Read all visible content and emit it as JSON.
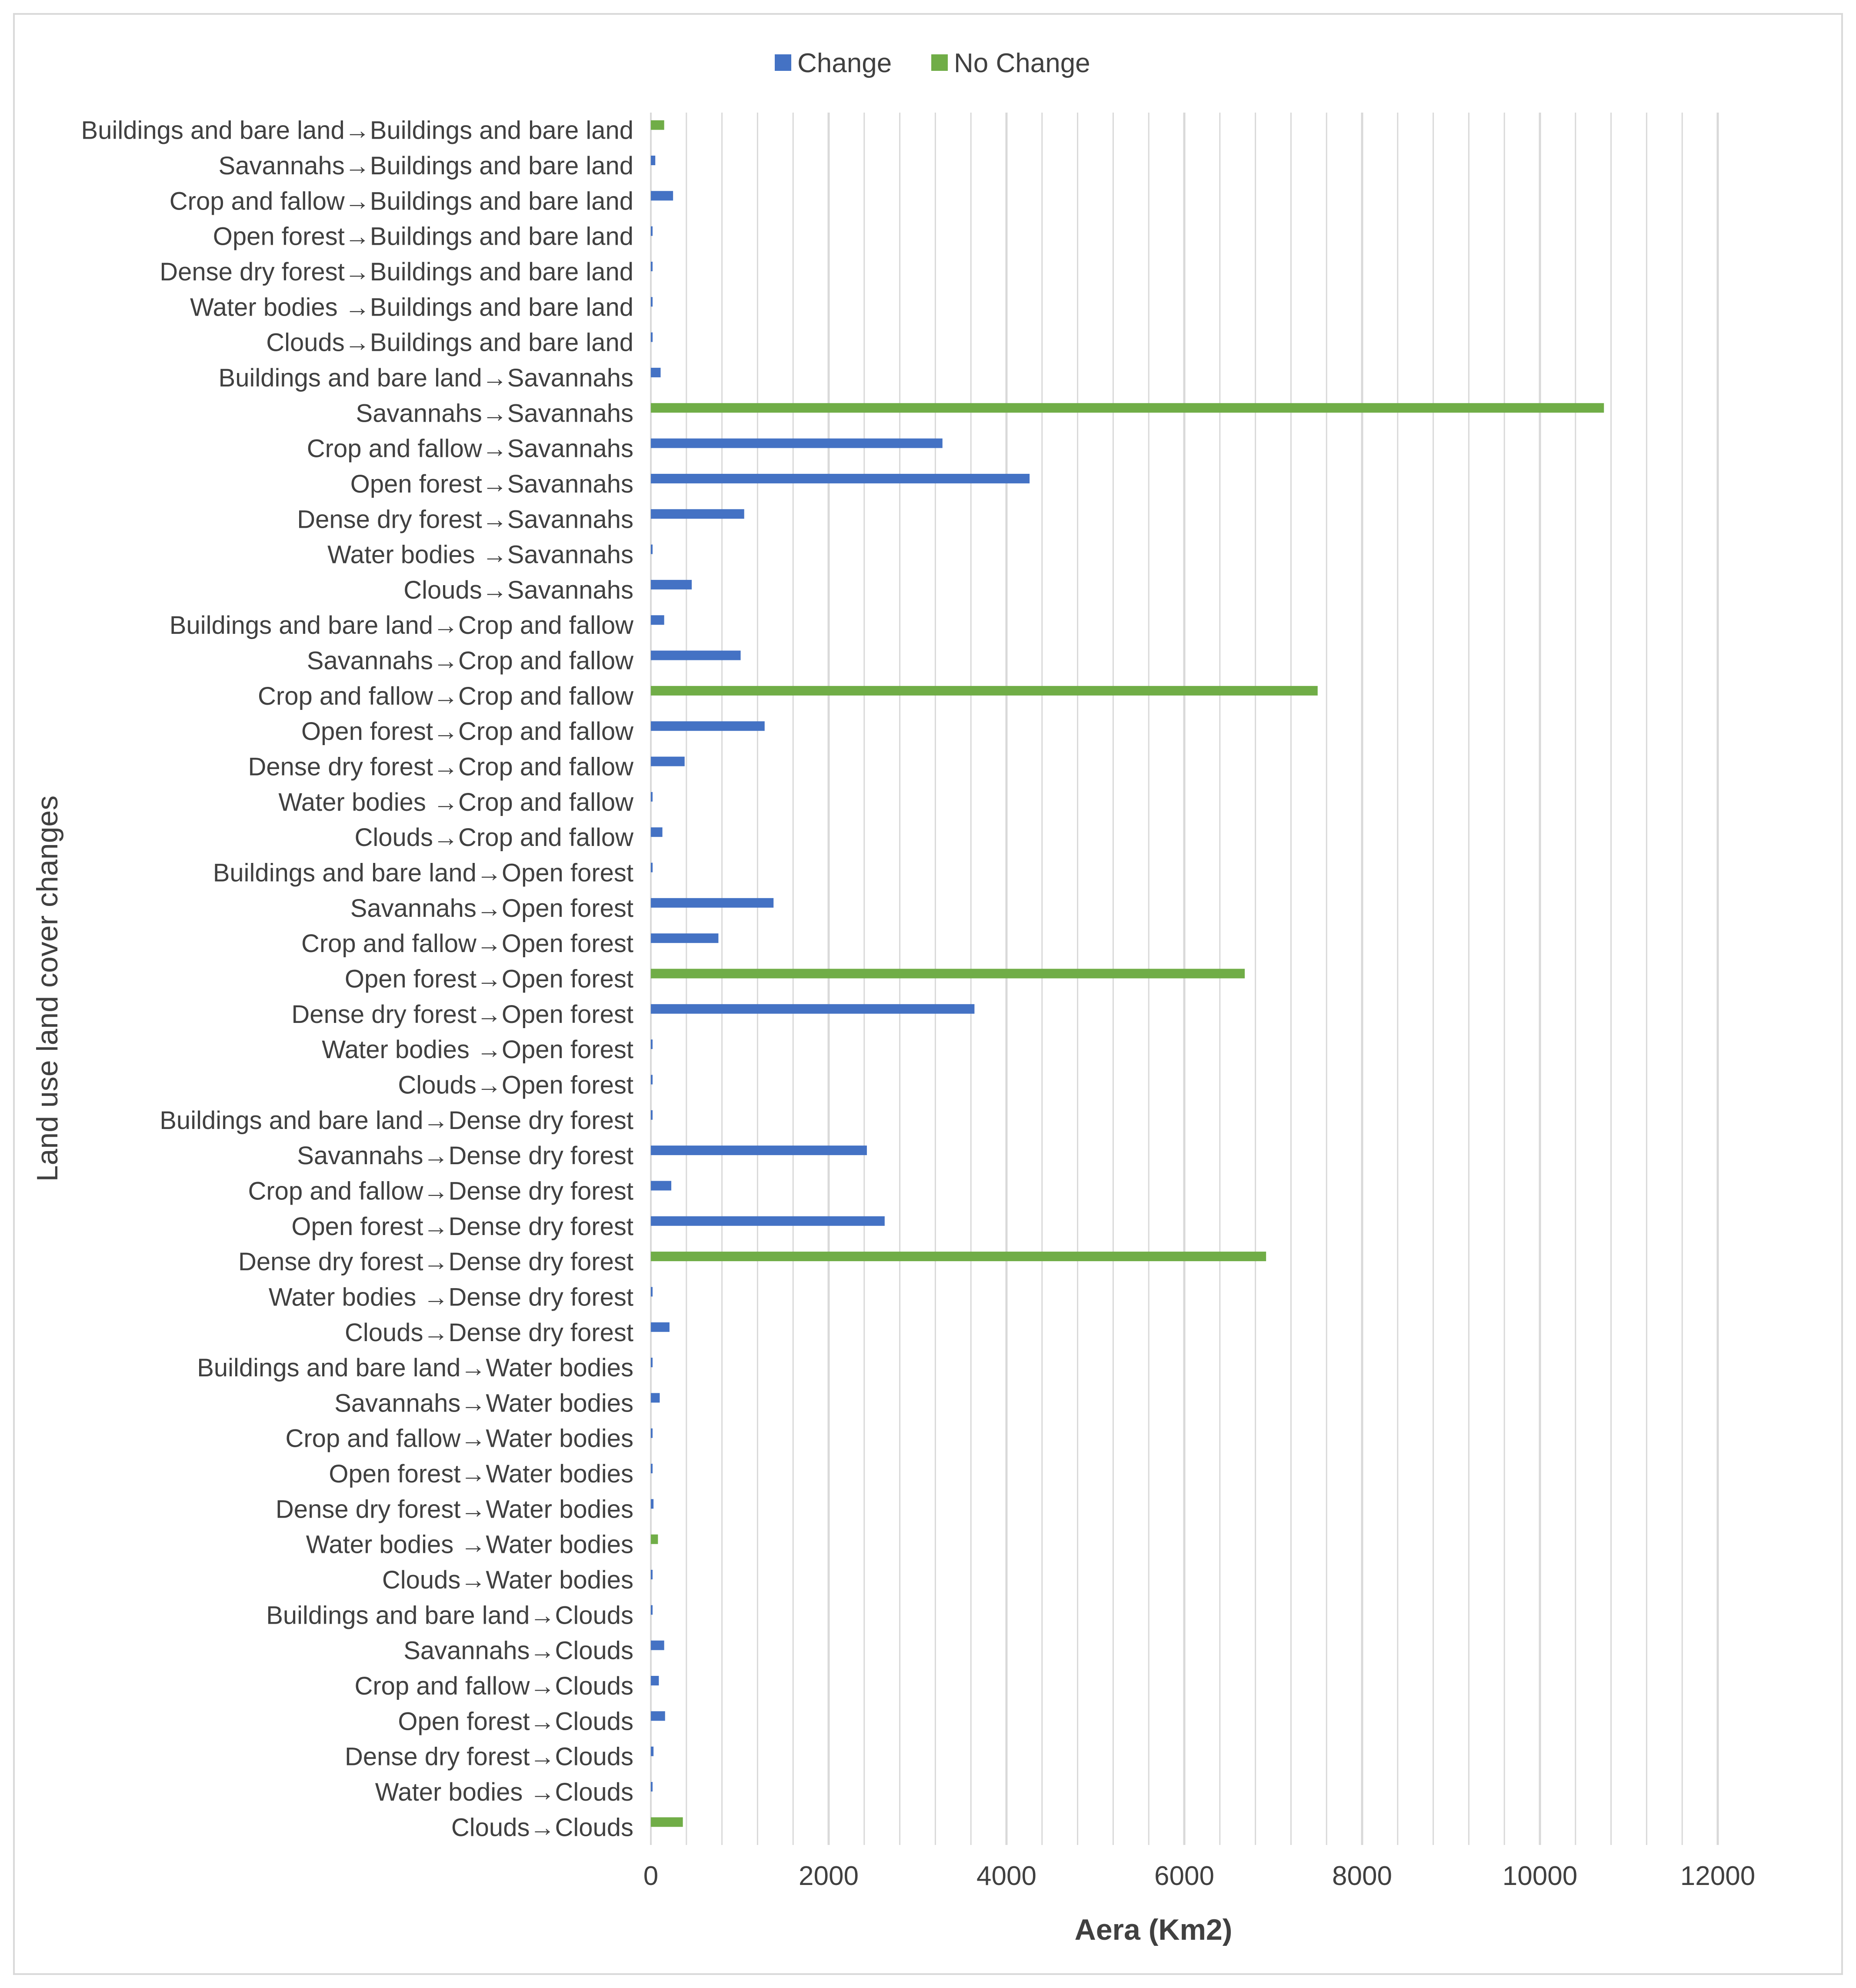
{
  "chart_data": {
    "type": "bar",
    "orientation": "horizontal",
    "title": "",
    "xlabel": "Aera (Km2)",
    "ylabel": "Land use land cover changes",
    "xlim": [
      0,
      12000
    ],
    "xticks": [
      0,
      2000,
      4000,
      6000,
      8000,
      10000,
      12000
    ],
    "grid": "vertical minor and major gridlines",
    "legend_position": "top-center",
    "colors": {
      "Change": "#4472C4",
      "No Change": "#70AD47",
      "grid": "#d9d9d9",
      "text": "#404040"
    },
    "categories": [
      "Buildings and bare land→Buildings and bare land",
      "Savannahs→Buildings and bare land",
      "Crop and fallow→Buildings and bare land",
      "Open forest→Buildings and bare land",
      "Dense dry forest→Buildings and bare land",
      "Water bodies →Buildings and bare land",
      "Clouds→Buildings and bare land",
      "Buildings and bare land→Savannahs",
      "Savannahs→Savannahs",
      "Crop and fallow→Savannahs",
      "Open forest→Savannahs",
      "Dense dry forest→Savannahs",
      "Water bodies →Savannahs",
      "Clouds→Savannahs",
      "Buildings and bare land→Crop and fallow",
      "Savannahs→Crop and fallow",
      "Crop and fallow→Crop and fallow",
      "Open forest→Crop and fallow",
      "Dense dry forest→Crop and fallow",
      "Water bodies →Crop and fallow",
      "Clouds→Crop and fallow",
      "Buildings and bare land→Open forest",
      "Savannahs→Open forest",
      "Crop and fallow→Open forest",
      "Open forest→Open forest",
      "Dense dry forest→Open forest",
      "Water bodies →Open forest",
      "Clouds→Open forest",
      "Buildings and bare land→Dense dry forest",
      "Savannahs→Dense dry forest",
      "Crop and fallow→Dense dry forest",
      "Open forest→Dense dry forest",
      "Dense dry forest→Dense dry forest",
      "Water bodies →Dense dry forest",
      "Clouds→Dense dry forest",
      "Buildings and bare land→Water bodies",
      "Savannahs→Water bodies",
      "Crop and fallow→Water bodies",
      "Open forest→Water bodies",
      "Dense dry forest→Water bodies",
      "Water bodies →Water bodies",
      "Clouds→Water bodies",
      "Buildings and bare land→Clouds",
      "Savannahs→Clouds",
      "Crop and fallow→Clouds",
      "Open forest→Clouds",
      "Dense dry forest→Clouds",
      "Water bodies →Clouds",
      "Clouds→Clouds"
    ],
    "series": [
      {
        "name": "Change",
        "values": [
          0,
          50,
          250,
          5,
          5,
          5,
          20,
          110,
          0,
          3280,
          4260,
          1050,
          5,
          460,
          150,
          1010,
          0,
          1280,
          380,
          10,
          130,
          20,
          1380,
          760,
          0,
          3640,
          10,
          10,
          10,
          2430,
          230,
          2630,
          0,
          10,
          210,
          10,
          100,
          10,
          10,
          30,
          0,
          10,
          10,
          150,
          90,
          160,
          30,
          10,
          0
        ]
      },
      {
        "name": "No Change",
        "values": [
          150,
          0,
          0,
          0,
          0,
          0,
          0,
          0,
          10720,
          0,
          0,
          0,
          0,
          0,
          0,
          0,
          7500,
          0,
          0,
          0,
          0,
          0,
          0,
          0,
          6680,
          0,
          0,
          0,
          0,
          0,
          0,
          0,
          6920,
          0,
          0,
          0,
          0,
          0,
          0,
          0,
          80,
          0,
          0,
          0,
          0,
          0,
          0,
          0,
          360
        ]
      }
    ]
  }
}
